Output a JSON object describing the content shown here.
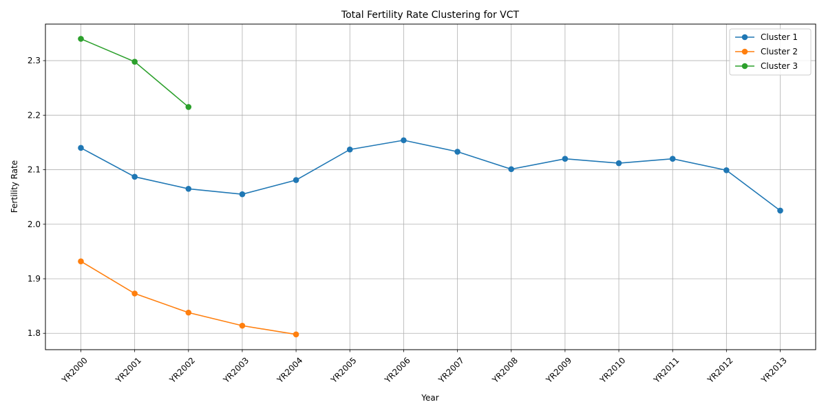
{
  "chart_data": {
    "type": "line",
    "title": "Total Fertility Rate Clustering for VCT",
    "xlabel": "Year",
    "ylabel": "Fertility Rate",
    "categories": [
      "YR2000",
      "YR2001",
      "YR2002",
      "YR2003",
      "YR2004",
      "YR2005",
      "YR2006",
      "YR2007",
      "YR2008",
      "YR2009",
      "YR2010",
      "YR2011",
      "YR2012",
      "YR2013"
    ],
    "yticks": [
      "1.8",
      "1.9",
      "2.0",
      "2.1",
      "2.2",
      "2.3"
    ],
    "ylim": [
      1.77,
      2.367
    ],
    "grid": true,
    "legend_position": "top-right",
    "series": [
      {
        "name": "Cluster 1",
        "color": "#1f77b4",
        "values": [
          2.14,
          2.087,
          2.065,
          2.055,
          2.081,
          2.137,
          2.154,
          2.133,
          2.101,
          2.12,
          2.112,
          2.12,
          2.099,
          2.025
        ]
      },
      {
        "name": "Cluster 2",
        "color": "#ff7f0e",
        "values": [
          1.932,
          1.873,
          1.838,
          1.814,
          1.798,
          null,
          null,
          null,
          null,
          null,
          null,
          null,
          null,
          null
        ]
      },
      {
        "name": "Cluster 3",
        "color": "#2ca02c",
        "values": [
          2.34,
          2.298,
          2.215,
          null,
          null,
          null,
          null,
          null,
          null,
          null,
          null,
          null,
          null,
          null
        ]
      }
    ]
  }
}
